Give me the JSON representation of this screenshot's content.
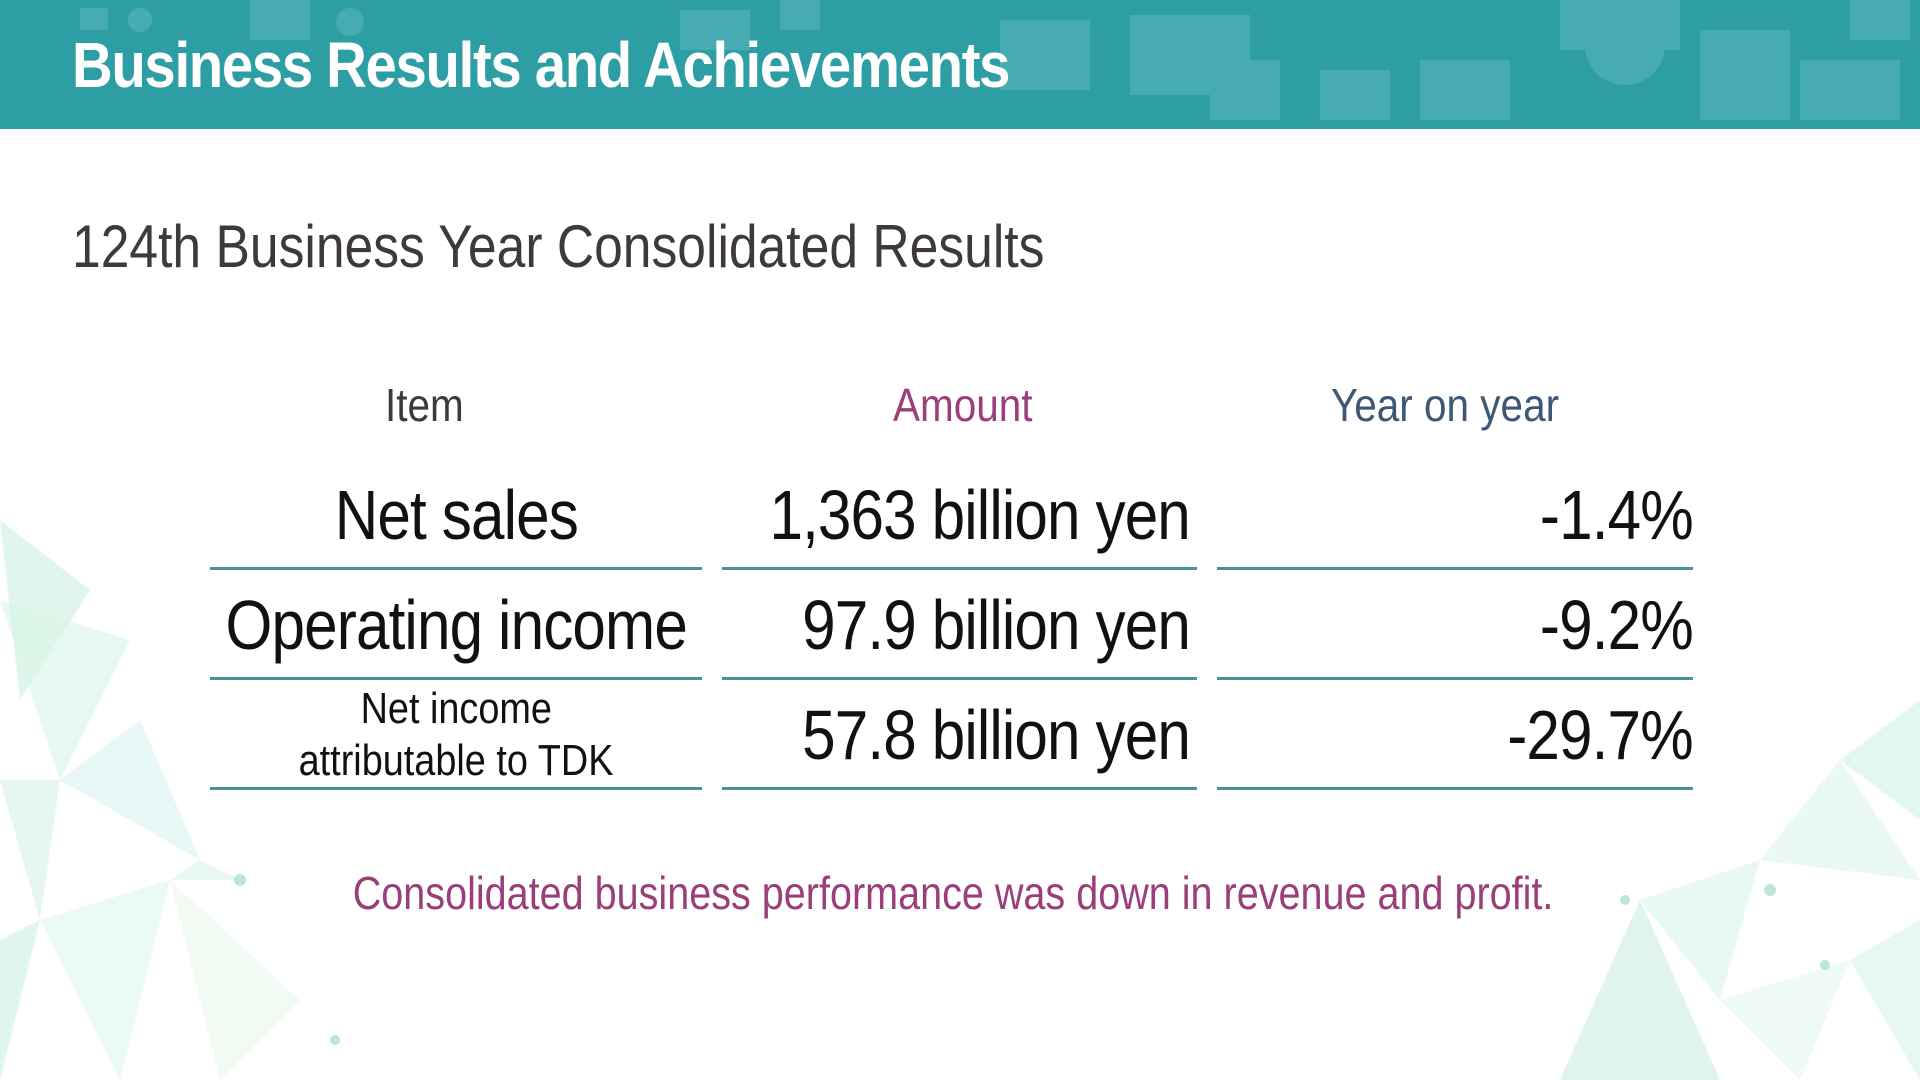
{
  "header": {
    "title": "Business Results and Achievements"
  },
  "subtitle": "124th Business Year Consolidated Results",
  "table": {
    "columns": {
      "item": "Item",
      "amount": "Amount",
      "yoy": "Year on year"
    },
    "rows": [
      {
        "item": "Net sales",
        "amount": "1,363 billion yen",
        "yoy": "-1.4%"
      },
      {
        "item": "Operating income",
        "amount": "97.9 billion yen",
        "yoy": "-9.2%"
      },
      {
        "item_line1": "Net income",
        "item_line2": "attributable to TDK",
        "amount": "57.8 billion yen",
        "yoy": "-29.7%"
      }
    ]
  },
  "footer": "Consolidated business performance was down in revenue and profit.",
  "colors": {
    "header_bg": "#2e9ea5",
    "accent_magenta": "#9b3f7a",
    "accent_navy": "#3e5775",
    "rule": "#4b8f9d"
  }
}
